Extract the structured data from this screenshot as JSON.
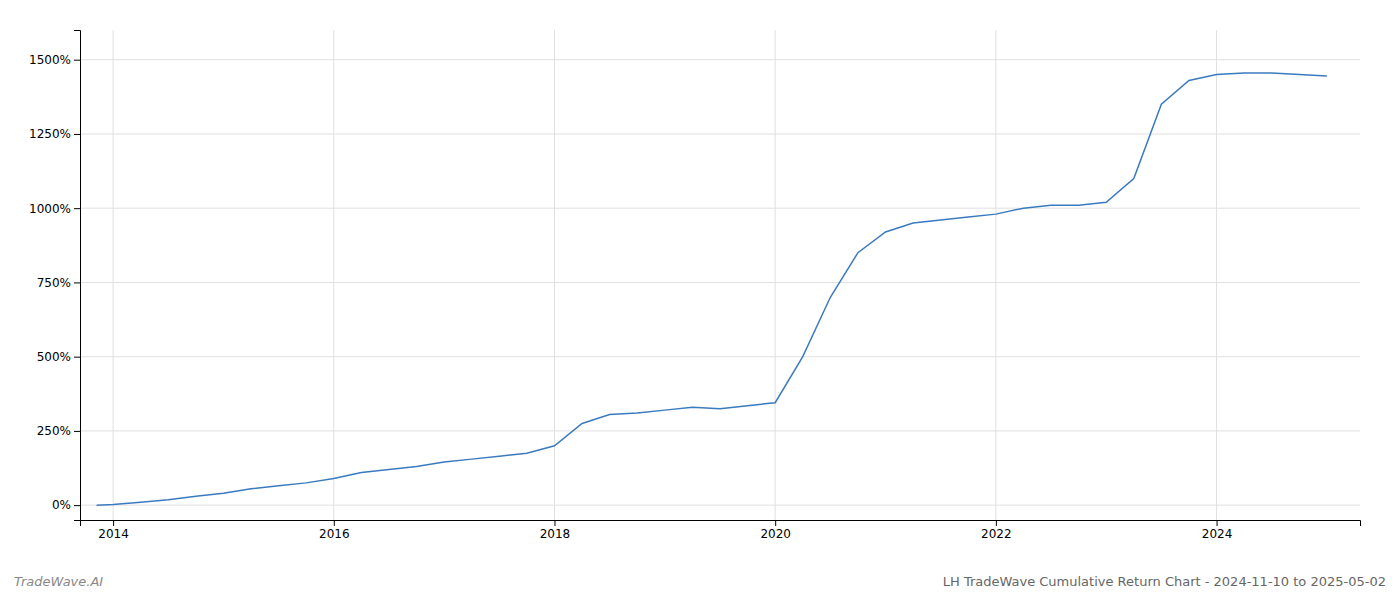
{
  "chart_data": {
    "type": "line",
    "title": "LH TradeWave Cumulative Return Chart - 2024-11-10 to 2025-05-02",
    "annotations": [
      "TradeWave.AI"
    ],
    "color": "#3a7abf",
    "x": [
      2013.85,
      2014.0,
      2014.25,
      2014.5,
      2014.75,
      2015.0,
      2015.25,
      2015.5,
      2015.75,
      2016.0,
      2016.25,
      2016.5,
      2016.75,
      2017.0,
      2017.25,
      2017.5,
      2017.75,
      2018.0,
      2018.25,
      2018.5,
      2018.75,
      2019.0,
      2019.25,
      2019.5,
      2019.75,
      2020.0,
      2020.25,
      2020.5,
      2020.75,
      2021.0,
      2021.25,
      2021.5,
      2021.75,
      2022.0,
      2022.25,
      2022.5,
      2022.75,
      2023.0,
      2023.25,
      2023.5,
      2023.75,
      2024.0,
      2024.25,
      2024.5,
      2024.75,
      2025.0
    ],
    "values": [
      0,
      2,
      10,
      18,
      30,
      40,
      55,
      65,
      75,
      90,
      110,
      120,
      130,
      145,
      155,
      165,
      175,
      200,
      275,
      305,
      310,
      320,
      330,
      325,
      335,
      345,
      500,
      700,
      850,
      920,
      950,
      960,
      970,
      980,
      1000,
      1010,
      1010,
      1020,
      1100,
      1350,
      1430,
      1450,
      1455,
      1455,
      1450,
      1445
    ],
    "xlim": [
      2013.7,
      2025.3
    ],
    "ylim": [
      -50,
      1600
    ],
    "xticks": [
      2014,
      2016,
      2018,
      2020,
      2022,
      2024
    ],
    "yticks": [
      {
        "value": 0,
        "label": "0%"
      },
      {
        "value": 250,
        "label": "250%"
      },
      {
        "value": 500,
        "label": "500%"
      },
      {
        "value": 750,
        "label": "750%"
      },
      {
        "value": 1000,
        "label": "1000%"
      },
      {
        "value": 1250,
        "label": "1250%"
      },
      {
        "value": 1500,
        "label": "1500%"
      }
    ],
    "grid": true
  }
}
